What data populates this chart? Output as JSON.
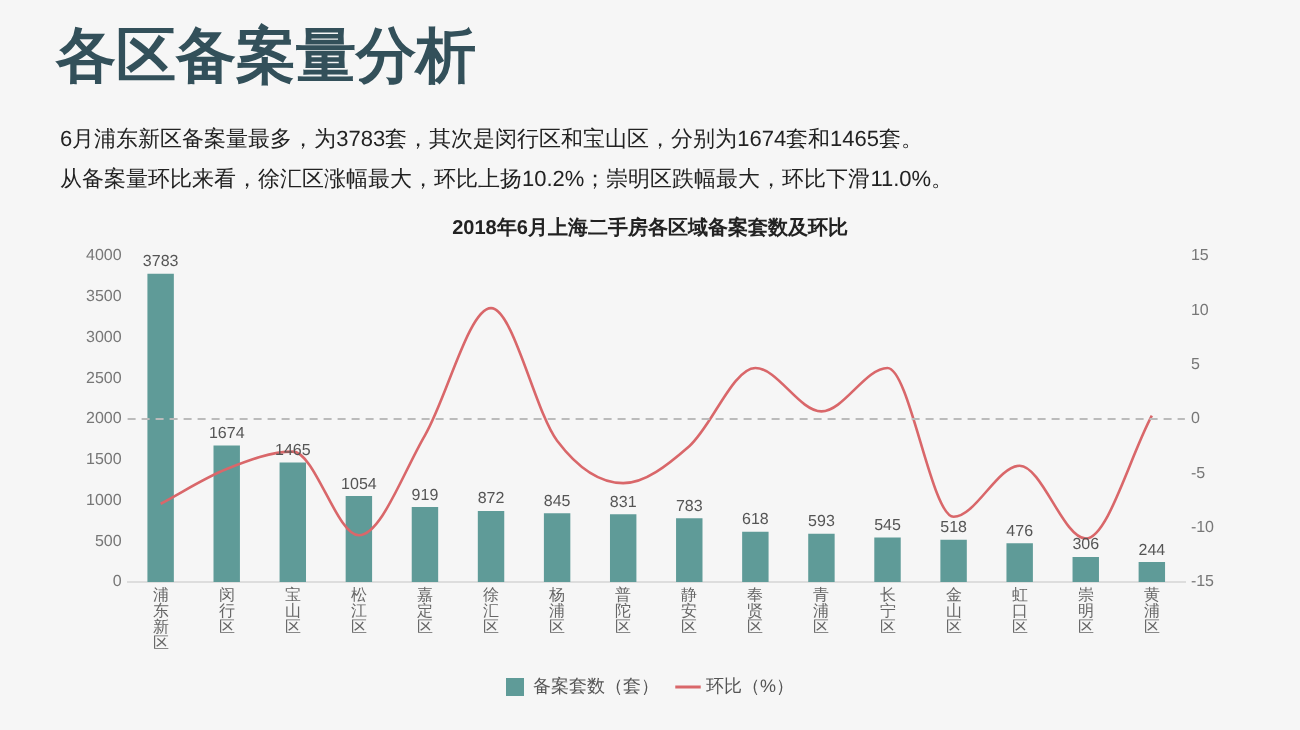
{
  "chart_data": {
    "type": "bar",
    "title": "各区备案量分析",
    "subtitle": "2018年6月上海二手房各区域备案套数及环比",
    "annotations": [
      "6月浦东新区备案量最多，为3783套，其次是闵行区和宝山区，分别为1674套和1465套。",
      "从备案量环比来看，徐汇区涨幅最大，环比上扬10.2%；崇明区跌幅最大，环比下滑11.0%。"
    ],
    "categories": [
      "浦东新区",
      "闵行区",
      "宝山区",
      "松江区",
      "嘉定区",
      "徐汇区",
      "杨浦区",
      "普陀区",
      "静安区",
      "奉贤区",
      "青浦区",
      "长宁区",
      "金山区",
      "虹口区",
      "崇明区",
      "黄浦区"
    ],
    "series": [
      {
        "name": "备案套数（套）",
        "color": "#5f9b98",
        "values": [
          3783,
          1674,
          1465,
          1054,
          919,
          872,
          845,
          831,
          783,
          618,
          593,
          545,
          518,
          476,
          306,
          244
        ],
        "value_labels": [
          "3783",
          "1674",
          "1465",
          "1054",
          "919",
          "872",
          "845",
          "831",
          "783",
          "618",
          "593",
          "545",
          "518",
          "476",
          "306",
          "244"
        ]
      },
      {
        "name": "环比（%）",
        "type": "line",
        "axis": "y2",
        "color": "#d9676a",
        "values": [
          -7.8,
          -4.6,
          -3.0,
          -10.7,
          -1.5,
          10.2,
          -2.0,
          -5.9,
          -2.5,
          4.7,
          0.7,
          4.7,
          -9.0,
          -4.3,
          -11.0,
          0.3
        ]
      }
    ],
    "ylim": [
      0,
      4000
    ],
    "yticks": [
      0,
      500,
      1000,
      1500,
      2000,
      2500,
      3000,
      3500,
      4000
    ],
    "y2lim": [
      -15,
      15
    ],
    "y2ticks": [
      -15,
      -10,
      -5,
      0,
      5,
      10,
      15
    ],
    "ref_lines": [
      {
        "axis": "y2",
        "value": 0,
        "line_style": "dashed",
        "color": "#bbbbbb"
      }
    ],
    "legend": "bottom",
    "grid": false,
    "marker": "none"
  }
}
